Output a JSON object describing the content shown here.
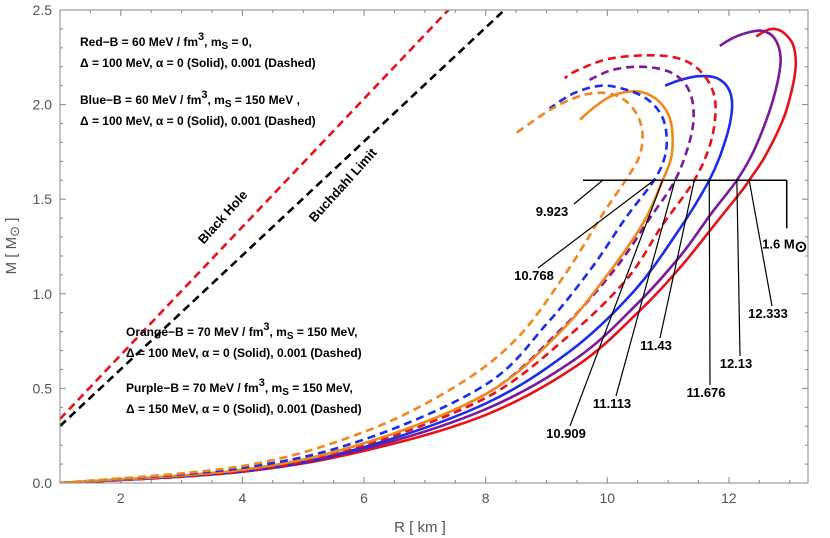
{
  "chart_data": {
    "type": "line",
    "xlabel": "R [ km ]",
    "ylabel": "M [ M",
    "ylabel_sub": "⊙",
    "ylabel_end": " ]",
    "xlim": [
      1,
      13.3
    ],
    "ylim": [
      0,
      2.5
    ],
    "xticks": [
      2,
      4,
      6,
      8,
      10,
      12
    ],
    "yticks": [
      0.0,
      0.5,
      1.0,
      1.5,
      2.0,
      2.5
    ],
    "xtick_labels": [
      "2",
      "4",
      "6",
      "8",
      "10",
      "12"
    ],
    "ytick_labels": [
      "0.0",
      "0.5",
      "1.0",
      "1.5",
      "2.0",
      "2.5"
    ],
    "grid": false,
    "colors": {
      "red": "#e8111a",
      "blue": "#1a2ee8",
      "orange": "#f2871c",
      "purple": "#7a1a9a",
      "black": "#000000"
    },
    "limit_lines": [
      {
        "label": "Black Hole",
        "color": "#e8111a",
        "slope": 0.3385,
        "style": "dashed"
      },
      {
        "label": "Buchdahl Limit",
        "color": "#000000",
        "slope": 0.3009,
        "style": "dashed"
      }
    ],
    "series": [
      {
        "color": "red",
        "style": "solid",
        "x": [
          1.0,
          4.0,
          6.0,
          8.0,
          9.5,
          10.5,
          11.2,
          11.8,
          12.2,
          12.333,
          12.6,
          12.9,
          13.05,
          13.1,
          13.05,
          12.9,
          12.75,
          12.6,
          12.45
        ],
        "y": [
          0.0,
          0.06,
          0.17,
          0.36,
          0.62,
          0.9,
          1.14,
          1.38,
          1.54,
          1.6,
          1.73,
          1.93,
          2.1,
          2.22,
          2.32,
          2.38,
          2.4,
          2.39,
          2.36
        ]
      },
      {
        "color": "purple",
        "style": "solid",
        "x": [
          1.0,
          4.0,
          6.0,
          8.0,
          9.5,
          10.5,
          11.2,
          11.7,
          12.13,
          12.4,
          12.65,
          12.8,
          12.85,
          12.75,
          12.55,
          12.3,
          12.05,
          11.85
        ],
        "y": [
          0.0,
          0.06,
          0.18,
          0.39,
          0.66,
          0.95,
          1.2,
          1.42,
          1.6,
          1.75,
          1.95,
          2.12,
          2.25,
          2.35,
          2.39,
          2.38,
          2.35,
          2.31
        ]
      },
      {
        "color": "blue",
        "style": "solid",
        "x": [
          1.0,
          4.0,
          6.0,
          8.0,
          9.4,
          10.4,
          11.1,
          11.676,
          11.95,
          12.05,
          12.0,
          11.8,
          11.5,
          11.2,
          10.95
        ],
        "y": [
          0.0,
          0.06,
          0.19,
          0.42,
          0.7,
          1.0,
          1.3,
          1.6,
          1.82,
          1.98,
          2.08,
          2.14,
          2.15,
          2.13,
          2.1
        ]
      },
      {
        "color": "red",
        "style": "dashed",
        "x": [
          1.0,
          4.0,
          6.0,
          8.0,
          9.3,
          10.3,
          10.9,
          11.43,
          11.7,
          11.78,
          11.7,
          11.45,
          11.1,
          10.6,
          10.0,
          9.5,
          9.3
        ],
        "y": [
          0.0,
          0.06,
          0.2,
          0.45,
          0.76,
          1.07,
          1.36,
          1.6,
          1.8,
          1.98,
          2.1,
          2.2,
          2.25,
          2.26,
          2.24,
          2.18,
          2.14
        ]
      },
      {
        "color": "purple",
        "style": "dashed",
        "x": [
          1.0,
          4.0,
          6.0,
          8.0,
          9.2,
          10.1,
          10.7,
          11.113,
          11.35,
          11.42,
          11.35,
          11.15,
          10.85,
          10.45,
          10.05,
          9.7
        ],
        "y": [
          0.0,
          0.07,
          0.21,
          0.47,
          0.8,
          1.12,
          1.4,
          1.6,
          1.8,
          1.95,
          2.07,
          2.15,
          2.19,
          2.2,
          2.18,
          2.13
        ]
      },
      {
        "color": "orange",
        "style": "solid",
        "x": [
          1.0,
          4.0,
          6.0,
          8.0,
          9.2,
          10.0,
          10.6,
          10.909,
          11.05,
          11.07,
          11.0,
          10.8,
          10.5,
          10.1,
          9.8,
          9.55
        ],
        "y": [
          0.0,
          0.07,
          0.21,
          0.47,
          0.79,
          1.1,
          1.38,
          1.6,
          1.72,
          1.85,
          1.95,
          2.03,
          2.07,
          2.05,
          1.99,
          1.92
        ]
      },
      {
        "color": "blue",
        "style": "dashed",
        "x": [
          1.0,
          4.0,
          6.0,
          8.0,
          9.0,
          9.75,
          10.3,
          10.768,
          10.95,
          10.97,
          10.88,
          10.65,
          10.3,
          9.9,
          9.45,
          9.05
        ],
        "y": [
          0.0,
          0.08,
          0.23,
          0.52,
          0.84,
          1.14,
          1.4,
          1.6,
          1.73,
          1.85,
          1.95,
          2.03,
          2.08,
          2.1,
          2.06,
          1.98
        ]
      },
      {
        "color": "orange",
        "style": "dashed",
        "x": [
          1.0,
          4.0,
          6.0,
          7.5,
          8.5,
          9.3,
          9.923,
          10.3,
          10.52,
          10.58,
          10.5,
          10.3,
          10.0,
          9.6,
          9.1,
          8.5
        ],
        "y": [
          0.0,
          0.09,
          0.27,
          0.51,
          0.76,
          1.1,
          1.42,
          1.6,
          1.72,
          1.84,
          1.94,
          2.02,
          2.06,
          2.05,
          1.98,
          1.85
        ]
      }
    ],
    "reference": {
      "y": 1.6,
      "x_start": 9.6,
      "x_end": 12.95,
      "label": "1.6 M",
      "label_sub": "⊙"
    },
    "radius_labels": [
      {
        "value": 9.923,
        "text": "9.923"
      },
      {
        "value": 10.768,
        "text": "10.768"
      },
      {
        "value": 10.909,
        "text": "10.909"
      },
      {
        "value": 11.113,
        "text": "11.113"
      },
      {
        "value": 11.43,
        "text": "11.43"
      },
      {
        "value": 11.676,
        "text": "11.676"
      },
      {
        "value": 12.13,
        "text": "12.13"
      },
      {
        "value": 12.333,
        "text": "12.333"
      }
    ],
    "annotations": [
      {
        "line1": "Red−B = 60 MeV / fm",
        "sup1": "3",
        "rest1": ", m",
        "sub1": "S",
        "end1": " = 0,",
        "line2": "Δ = 100 MeV, α = 0 (Solid), 0.001 (Dashed)"
      },
      {
        "line1": "Blue−B = 60 MeV / fm",
        "sup1": "3",
        "rest1": ", m",
        "sub1": "S",
        "end1": " = 150 MeV ,",
        "line2": "Δ = 100 MeV, α = 0 (Solid), 0.001 (Dashed)"
      },
      {
        "line1": "Orange−B = 70 MeV / fm",
        "sup1": "3",
        "rest1": ", m",
        "sub1": "S",
        "end1": " = 150 MeV,",
        "line2": "Δ = 100 MeV, α = 0 (Solid), 0.001 (Dashed)"
      },
      {
        "line1": "Purple−B = 70 MeV / fm",
        "sup1": "3",
        "rest1": ", m",
        "sub1": "S",
        "end1": " = 150 MeV,",
        "line2": "Δ = 150 MeV, α = 0 (Solid), 0.001 (Dashed)"
      }
    ]
  }
}
